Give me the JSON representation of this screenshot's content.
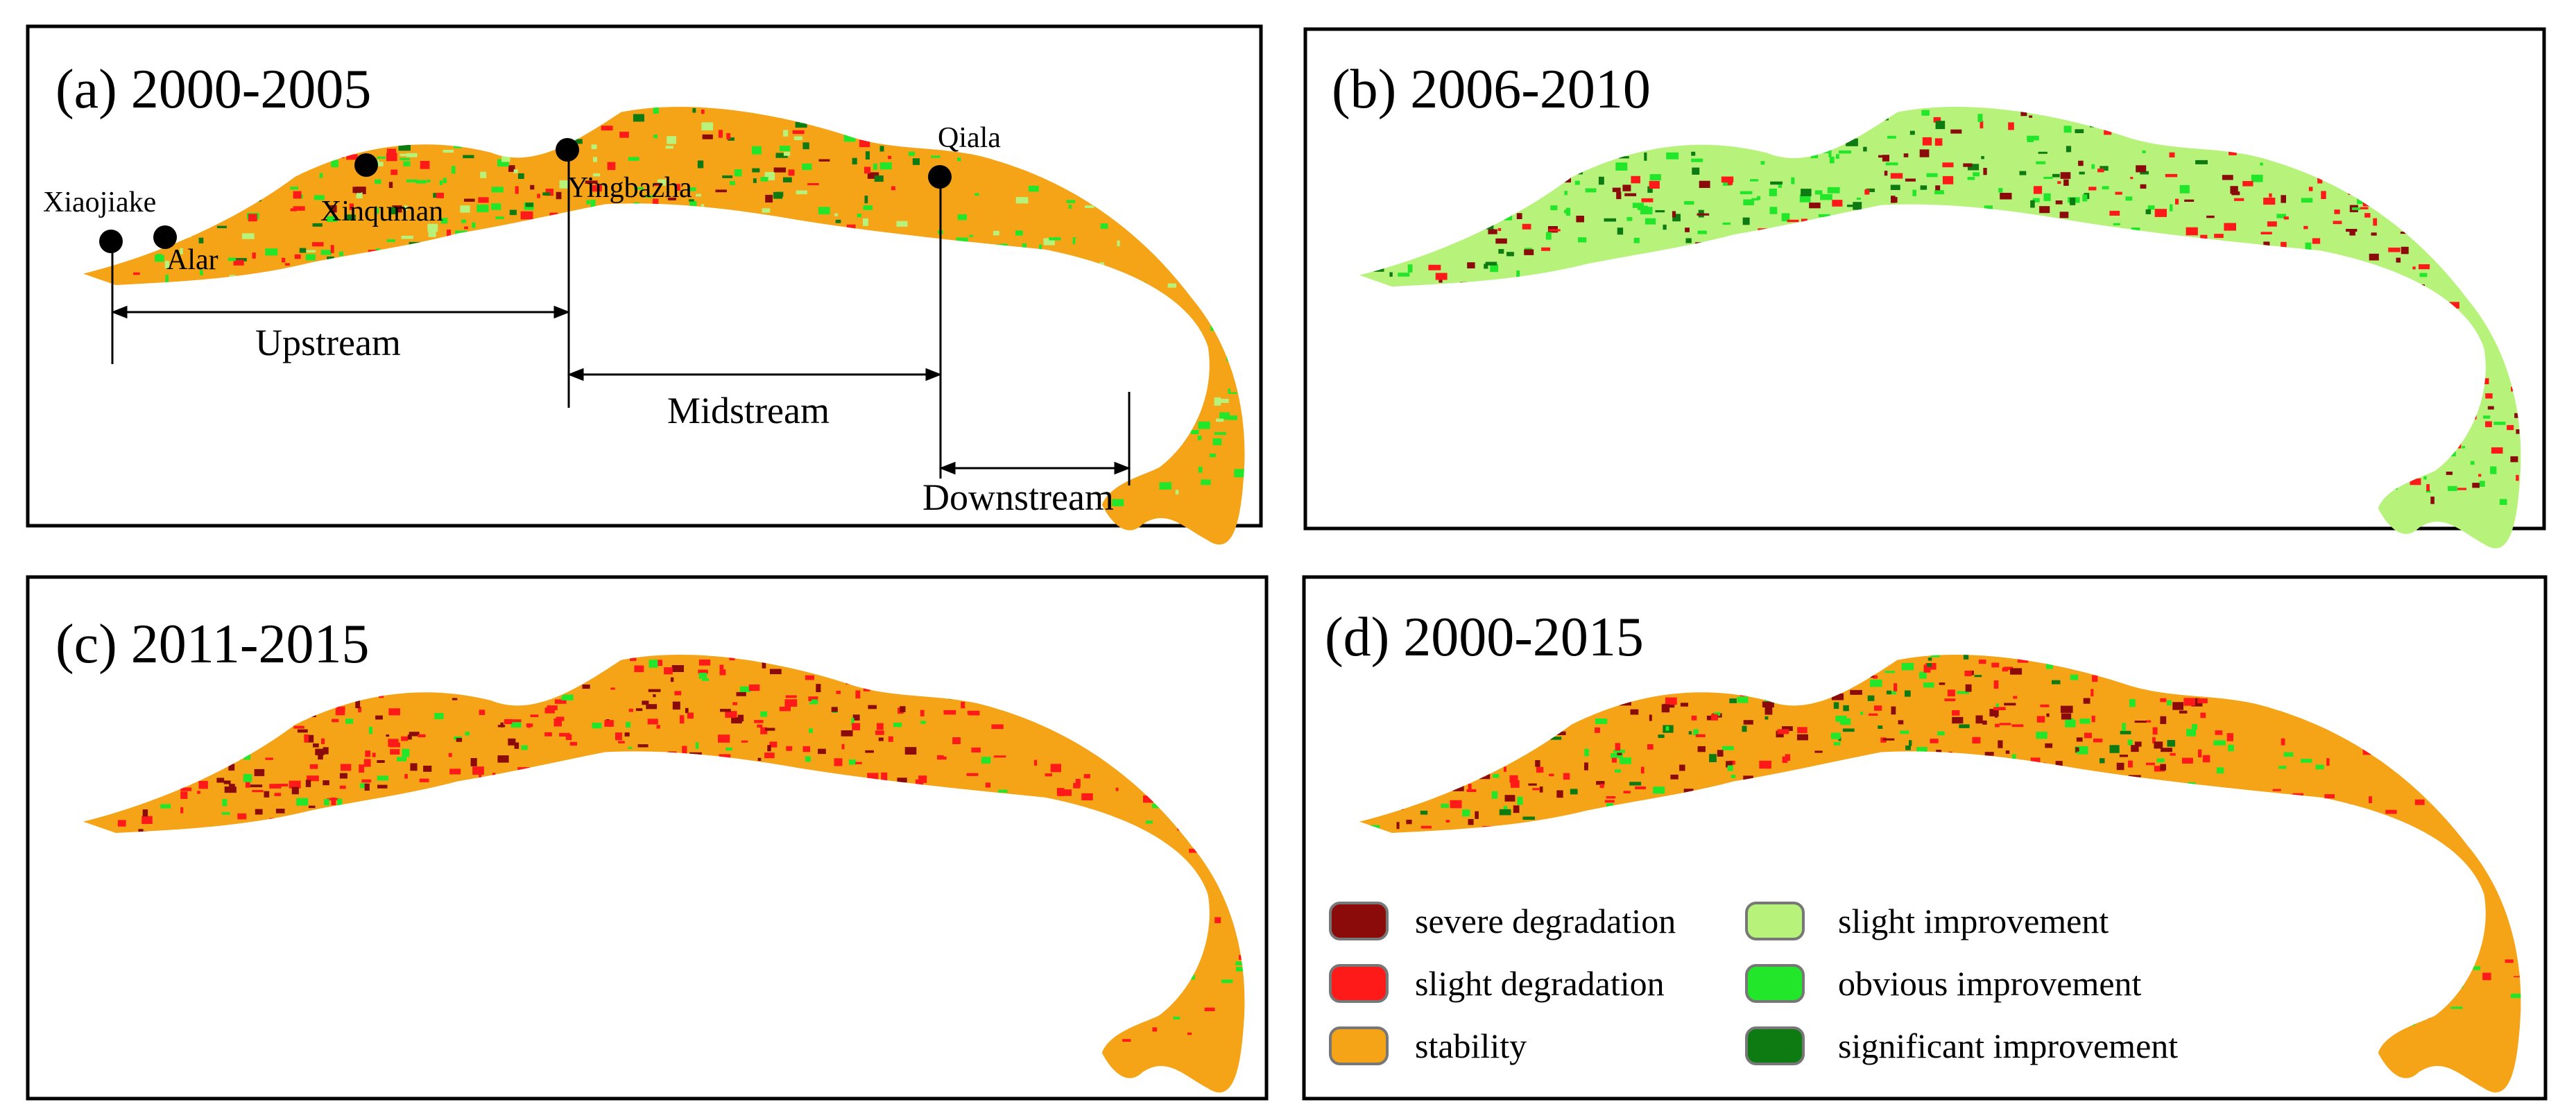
{
  "figure": {
    "panels": [
      {
        "id": "a",
        "title": "(a) 2000-2005",
        "base_color": "#F5A418",
        "coverage": "mixed-green"
      },
      {
        "id": "b",
        "title": "(b) 2006-2010",
        "base_color": "#B7F27A",
        "coverage": "light-green"
      },
      {
        "id": "c",
        "title": "(c) 2011-2015",
        "base_color": "#F5A418",
        "coverage": "red-upper"
      },
      {
        "id": "d",
        "title": "(d) 2000-2015",
        "base_color": "#F5A418",
        "coverage": "orange-mostly"
      }
    ],
    "sites": [
      "Xiaojiake",
      "Alar",
      "Xinquman",
      "Yingbazha",
      "Qiala"
    ],
    "reaches": [
      "Upstream",
      "Midstream",
      "Downstream"
    ],
    "legend": [
      {
        "label": "severe degradation",
        "color": "#8B0A0A"
      },
      {
        "label": "slight degradation",
        "color": "#FF1A1A"
      },
      {
        "label": "stability",
        "color": "#F5A418"
      },
      {
        "label": "slight improvement",
        "color": "#B7F27A"
      },
      {
        "label": "obvious improvement",
        "color": "#22E62A"
      },
      {
        "label": "significant improvement",
        "color": "#0E7A12"
      }
    ],
    "categories": {
      "severe": "#8B0A0A",
      "slight_deg": "#FF1A1A",
      "stability": "#F5A418",
      "slight_imp": "#B7F27A",
      "obvious_imp": "#22E62A",
      "significant_imp": "#0E7A12"
    }
  }
}
